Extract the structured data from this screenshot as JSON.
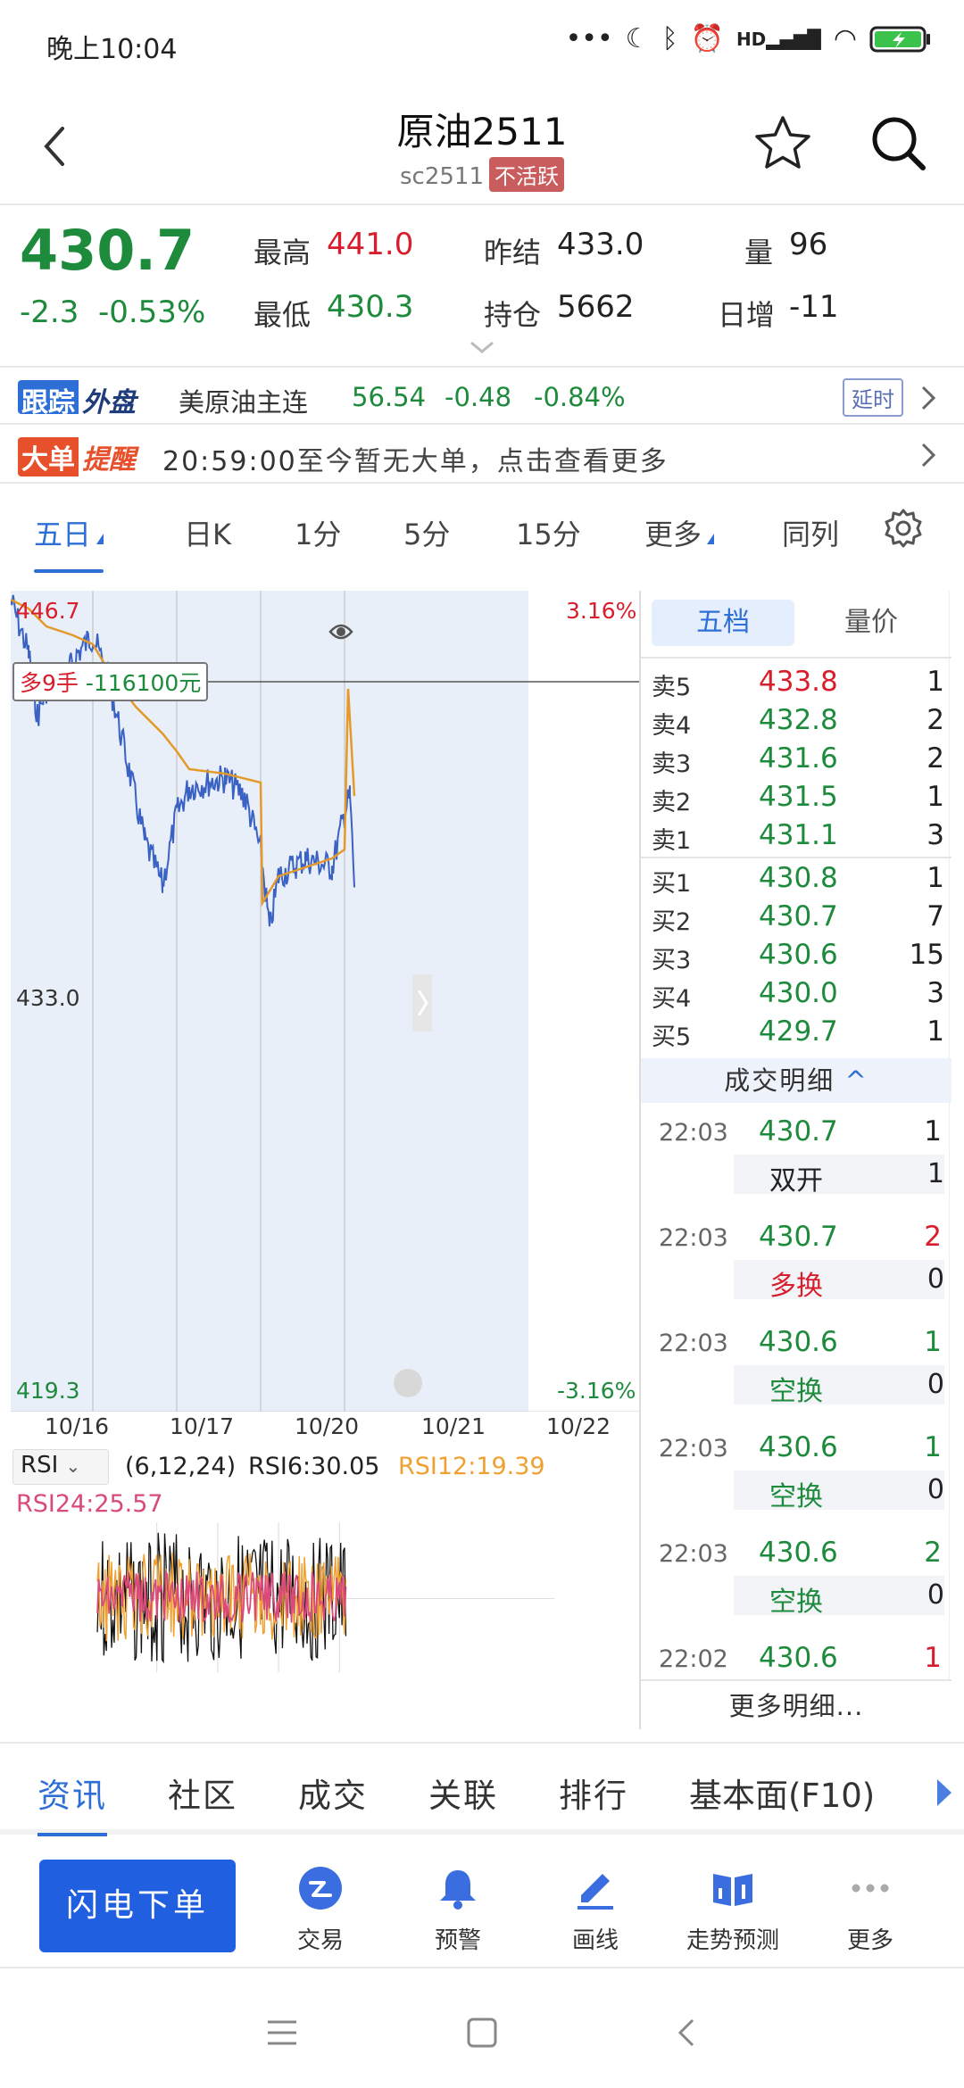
{
  "status_bar": {
    "time": "晚上10:04",
    "net": "HD"
  },
  "header": {
    "title": "原油2511",
    "code": "sc2511",
    "badge": "不活跃"
  },
  "quote": {
    "last": "430.7",
    "change": "-2.3",
    "change_pct": "-0.53%",
    "high_label": "最高",
    "high": "441.0",
    "low_label": "最低",
    "low": "430.3",
    "settle_label": "昨结",
    "settle": "433.0",
    "oi_label": "持仓",
    "oi": "5662",
    "vol_label": "量",
    "vol": "96",
    "daily_label": "日增",
    "daily": "-11"
  },
  "track": {
    "badge1": "跟踪",
    "badge2": "外盘",
    "name": "美原油主连",
    "price": "56.54",
    "change": "-0.48",
    "pct": "-0.84%",
    "delay": "延时"
  },
  "bigorder": {
    "badge1": "大单",
    "badge2": "提醒",
    "time": "20:59:00",
    "text": "至今暂无大单，点击查看更多"
  },
  "period_tabs": [
    "五日",
    "日K",
    "1分",
    "5分",
    "15分",
    "更多",
    "同列"
  ],
  "chart": {
    "y_top": "446.7",
    "y_mid": "433.0",
    "y_bot": "419.3",
    "pct_top": "3.16%",
    "pct_bot": "-3.16%",
    "x_labels": [
      "10/16",
      "10/17",
      "10/20",
      "10/21",
      "10/22"
    ],
    "position_side": "多9手",
    "position_pnl": "-116100元"
  },
  "rsi": {
    "name": "RSI",
    "params": "(6,12,24)",
    "rsi6": "RSI6:30.05",
    "rsi12": "RSI12:19.39",
    "rsi24": "RSI24:25.57",
    "colors": {
      "rsi6": "#111111",
      "rsi12": "#f0a030",
      "rsi24": "#d94a7a"
    }
  },
  "book": {
    "tabs": [
      "五档",
      "量价"
    ],
    "asks": [
      {
        "label": "卖5",
        "price": "433.8",
        "qty": "1"
      },
      {
        "label": "卖4",
        "price": "432.8",
        "qty": "2"
      },
      {
        "label": "卖3",
        "price": "431.6",
        "qty": "2"
      },
      {
        "label": "卖2",
        "price": "431.5",
        "qty": "1"
      },
      {
        "label": "卖1",
        "price": "431.1",
        "qty": "3"
      }
    ],
    "bids": [
      {
        "label": "买1",
        "price": "430.8",
        "qty": "1"
      },
      {
        "label": "买2",
        "price": "430.7",
        "qty": "7"
      },
      {
        "label": "买3",
        "price": "430.6",
        "qty": "15"
      },
      {
        "label": "买4",
        "price": "430.0",
        "qty": "3"
      },
      {
        "label": "买5",
        "price": "429.7",
        "qty": "1"
      }
    ],
    "detail_header": "成交明细",
    "trades": [
      {
        "time": "22:03",
        "price": "430.7",
        "qty": "1",
        "type": "双开",
        "type_qty": "1"
      },
      {
        "time": "22:03",
        "price": "430.7",
        "qty": "2",
        "type": "多换",
        "type_qty": "0"
      },
      {
        "time": "22:03",
        "price": "430.6",
        "qty": "1",
        "type": "空换",
        "type_qty": "0"
      },
      {
        "time": "22:03",
        "price": "430.6",
        "qty": "1",
        "type": "空换",
        "type_qty": "0"
      },
      {
        "time": "22:03",
        "price": "430.6",
        "qty": "2",
        "type": "空换",
        "type_qty": "0"
      },
      {
        "time": "22:02",
        "price": "430.6",
        "qty": "1"
      }
    ],
    "more": "更多明细..."
  },
  "info_tabs": [
    "资讯",
    "社区",
    "成交",
    "关联",
    "排行",
    "基本面(F10)"
  ],
  "actions": {
    "flash": "闪电下单",
    "items": [
      "交易",
      "预警",
      "画线",
      "走势预测",
      "更多"
    ]
  },
  "colors": {
    "up": "#d81e2c",
    "down": "#1d8a3c",
    "accent": "#2d6fd6"
  }
}
